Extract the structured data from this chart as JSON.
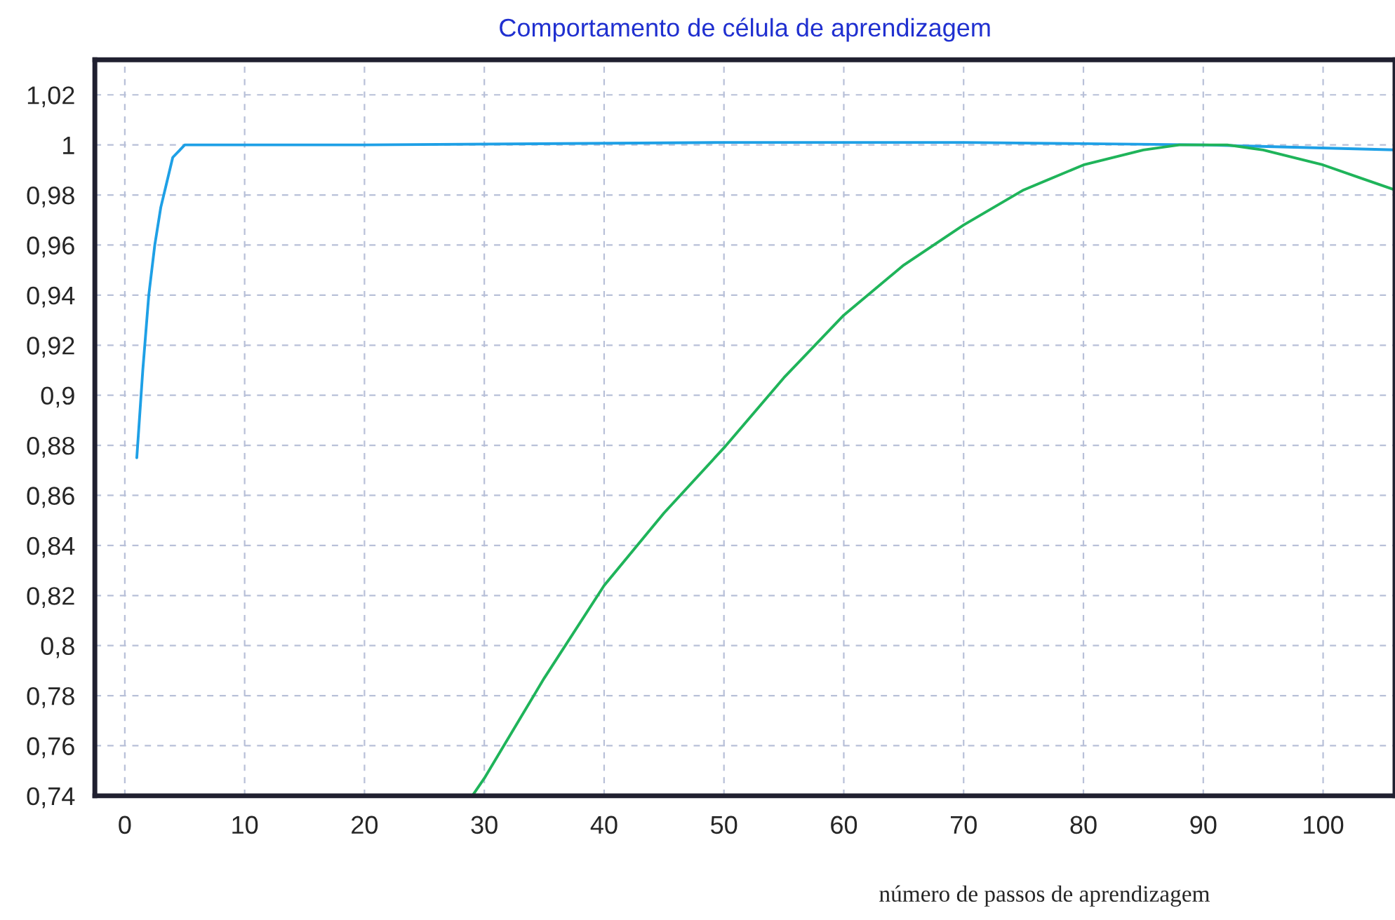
{
  "chart_data": {
    "type": "line",
    "title": "Comportamento de célula de aprendizagem",
    "xlabel": "número de passos de aprendizagem",
    "xlim": [
      -2.5,
      106
    ],
    "xticks": [
      0,
      10,
      20,
      30,
      40,
      50,
      60,
      70,
      80,
      90,
      100
    ],
    "ylim": [
      0.74,
      1.034
    ],
    "yticks": [
      {
        "value": 0.74,
        "label": "0,74"
      },
      {
        "value": 0.76,
        "label": "0,76"
      },
      {
        "value": 0.78,
        "label": "0,78"
      },
      {
        "value": 0.8,
        "label": "0,8"
      },
      {
        "value": 0.82,
        "label": "0,82"
      },
      {
        "value": 0.84,
        "label": "0,84"
      },
      {
        "value": 0.86,
        "label": "0,86"
      },
      {
        "value": 0.88,
        "label": "0,88"
      },
      {
        "value": 0.9,
        "label": "0,9"
      },
      {
        "value": 0.92,
        "label": "0,92"
      },
      {
        "value": 0.94,
        "label": "0,94"
      },
      {
        "value": 0.96,
        "label": "0,96"
      },
      {
        "value": 0.98,
        "label": "0,98"
      },
      {
        "value": 1,
        "label": "1"
      },
      {
        "value": 1.02,
        "label": "1,02"
      }
    ],
    "grid": true,
    "line_style": "solid",
    "marker": "none",
    "series": [
      {
        "color": "#1ea0e6",
        "x": [
          1,
          1.5,
          2,
          2.5,
          3,
          3.5,
          4,
          5,
          20,
          50,
          70,
          90,
          106
        ],
        "values": [
          0.875,
          0.91,
          0.94,
          0.96,
          0.975,
          0.985,
          0.995,
          1.0,
          1.0,
          1.001,
          1.001,
          1.0,
          0.998
        ]
      },
      {
        "color": "#1fb45a",
        "x": [
          29,
          30,
          35,
          40,
          45,
          50,
          55,
          60,
          65,
          70,
          75,
          80,
          85,
          88,
          92,
          95,
          100,
          103,
          106
        ],
        "values": [
          0.74,
          0.747,
          0.787,
          0.824,
          0.853,
          0.879,
          0.907,
          0.932,
          0.952,
          0.968,
          0.982,
          0.992,
          0.998,
          1.0,
          1.0,
          0.998,
          0.992,
          0.987,
          0.982
        ]
      }
    ]
  }
}
